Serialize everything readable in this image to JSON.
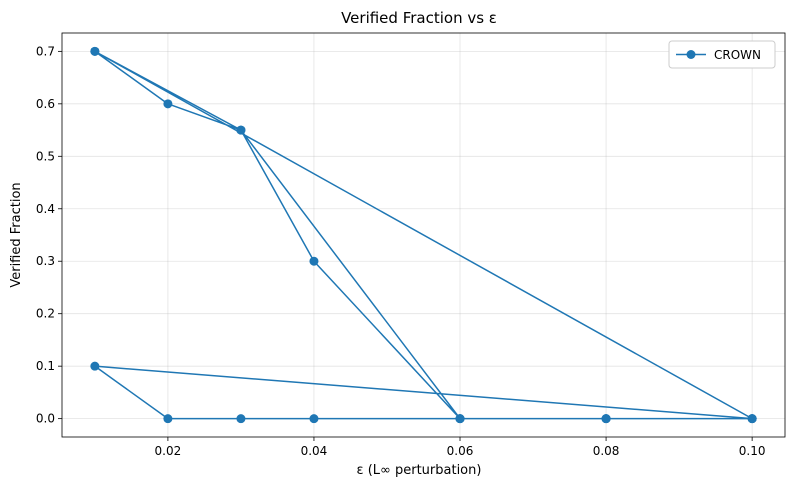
{
  "chart_data": {
    "type": "line",
    "title": "Verified Fraction vs ε",
    "xlabel": "ε (L∞ perturbation)",
    "ylabel": "Verified Fraction",
    "xlim": [
      0.0055,
      0.1045
    ],
    "ylim": [
      -0.035,
      0.735
    ],
    "xticks": [
      0.02,
      0.04,
      0.06,
      0.08,
      0.1
    ],
    "xtick_labels": [
      "0.02",
      "0.04",
      "0.06",
      "0.08",
      "0.10"
    ],
    "yticks": [
      0.0,
      0.1,
      0.2,
      0.3,
      0.4,
      0.5,
      0.6,
      0.7
    ],
    "ytick_labels": [
      "0.0",
      "0.1",
      "0.2",
      "0.3",
      "0.4",
      "0.5",
      "0.6",
      "0.7"
    ],
    "grid": true,
    "legend_position": "top-right",
    "series": [
      {
        "name": "CROWN",
        "color": "#1f77b4",
        "marker": "circle",
        "x": [
          0.01,
          0.02,
          0.03,
          0.04,
          0.06,
          0.08,
          0.1,
          0.01,
          0.03,
          0.06,
          0.08,
          0.1,
          0.01,
          0.02,
          0.03,
          0.04,
          0.06,
          0.08,
          0.1
        ],
        "y": [
          0.7,
          0.6,
          0.55,
          0.3,
          0.0,
          0.0,
          0.0,
          0.7,
          0.55,
          0.0,
          0.0,
          0.0,
          0.1,
          0.0,
          0.0,
          0.0,
          0.0,
          0.0,
          0.0
        ]
      }
    ]
  }
}
